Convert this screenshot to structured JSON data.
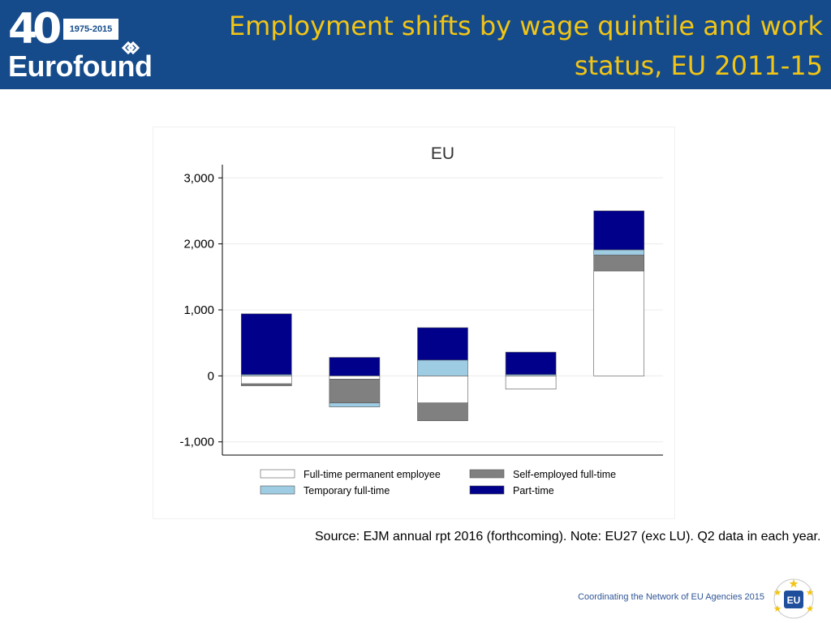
{
  "header": {
    "logo": {
      "anniversary": "40",
      "years": "1975-2015",
      "name": "Eurofound"
    },
    "title_line1": "Employment shifts by wage quintile and work",
    "title_line2": "status, EU 2011-15"
  },
  "chart_data": {
    "type": "bar",
    "stacked": true,
    "title": "EU",
    "xlabel": "",
    "ylabel": "",
    "ylim": [
      -1200,
      3200
    ],
    "yticks": [
      3000,
      2000,
      1000,
      0,
      -1000
    ],
    "ytick_labels": [
      "3,000",
      "2,000",
      "1,000",
      "0",
      "-1,000"
    ],
    "grid": true,
    "legend_position": "bottom",
    "categories": [
      "",
      "",
      "",
      "",
      ""
    ],
    "series": [
      {
        "name": "Full-time permanent employee",
        "color": "#ffffff",
        "values": [
          -120,
          -50,
          -410,
          -200,
          1590
        ]
      },
      {
        "name": "Self-employed full-time",
        "color": "#808080",
        "values": [
          -30,
          -360,
          -270,
          0,
          240
        ]
      },
      {
        "name": "Temporary full-time",
        "color": "#9dcce3",
        "values": [
          20,
          -60,
          240,
          20,
          80
        ]
      },
      {
        "name": "Part-time",
        "color": "#00008b",
        "values": [
          920,
          280,
          490,
          340,
          590
        ]
      }
    ]
  },
  "source_note": "Source: EJM annual rpt 2016 (forthcoming). Note: EU27 (exc LU). Q2 data in each year.",
  "footer": {
    "text": "Coordinating the Network of EU Agencies 2015",
    "badge": "EU"
  },
  "colors": {
    "header_bg": "#154b8b",
    "title": "#f2c515"
  }
}
